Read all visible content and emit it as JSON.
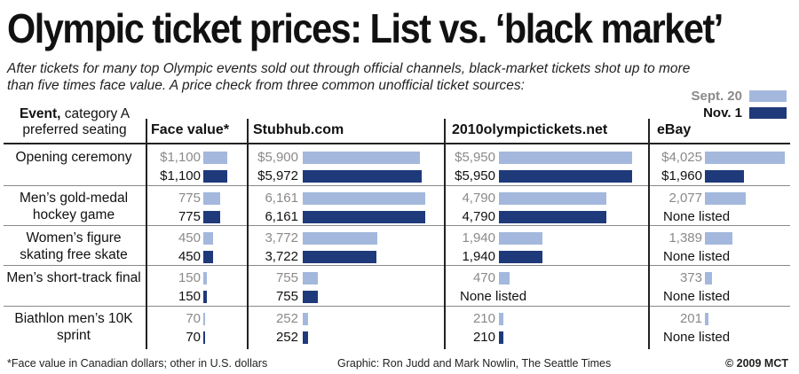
{
  "title": "Olympic ticket prices: List vs. ‘black market’",
  "subtitle": "After tickets for many top Olympic events sold out through official channels, black-market tickets shot up to more than five times face value. A price check from three common unofficial ticket sources:",
  "legend": [
    {
      "label": "Sept. 20",
      "color": "#a3b8dc"
    },
    {
      "label": "Nov. 1",
      "color": "#1f3a7a"
    }
  ],
  "event_header": {
    "bold": "Event,",
    "rest": " category A preferred seating"
  },
  "columns": [
    "Face value*",
    "Stubhub.com",
    "2010olympictickets.net",
    "eBay"
  ],
  "footer": {
    "note": "*Face value in Canadian dollars; other in U.S. dollars",
    "credit": "Graphic: Ron Judd and Mark Nowlin, The Seattle Times",
    "copyright": "© 2009 MCT"
  },
  "chart_data": {
    "type": "bar",
    "title": "Olympic ticket prices: List vs. ‘black market’",
    "series_names": [
      "Sept. 20",
      "Nov. 1"
    ],
    "events": [
      {
        "label": "Opening ceremony",
        "values": [
          {
            "sept": 1100,
            "nov": 1100,
            "sept_label": "$1,100",
            "nov_label": "$1,100"
          },
          {
            "sept": 5900,
            "nov": 5972,
            "sept_label": "$5,900",
            "nov_label": "$5,972"
          },
          {
            "sept": 5950,
            "nov": 5950,
            "sept_label": "$5,950",
            "nov_label": "$5,950"
          },
          {
            "sept": 4025,
            "nov": 1960,
            "sept_label": "$4,025",
            "nov_label": "$1,960"
          }
        ]
      },
      {
        "label": "Men’s gold-medal hockey game",
        "values": [
          {
            "sept": 775,
            "nov": 775,
            "sept_label": "775",
            "nov_label": "775"
          },
          {
            "sept": 6161,
            "nov": 6161,
            "sept_label": "6,161",
            "nov_label": "6,161"
          },
          {
            "sept": 4790,
            "nov": 4790,
            "sept_label": "4,790",
            "nov_label": "4,790"
          },
          {
            "sept": 2077,
            "nov": null,
            "sept_label": "2,077",
            "nov_label": "None listed"
          }
        ]
      },
      {
        "label": "Women’s figure skating free skate",
        "values": [
          {
            "sept": 450,
            "nov": 450,
            "sept_label": "450",
            "nov_label": "450"
          },
          {
            "sept": 3772,
            "nov": 3722,
            "sept_label": "3,772",
            "nov_label": "3,722"
          },
          {
            "sept": 1940,
            "nov": 1940,
            "sept_label": "1,940",
            "nov_label": "1,940"
          },
          {
            "sept": 1389,
            "nov": null,
            "sept_label": "1,389",
            "nov_label": "None listed"
          }
        ]
      },
      {
        "label": "Men’s short-track final",
        "values": [
          {
            "sept": 150,
            "nov": 150,
            "sept_label": "150",
            "nov_label": "150"
          },
          {
            "sept": 755,
            "nov": 755,
            "sept_label": "755",
            "nov_label": "755"
          },
          {
            "sept": 470,
            "nov": null,
            "sept_label": "470",
            "nov_label": "None listed"
          },
          {
            "sept": 373,
            "nov": null,
            "sept_label": "373",
            "nov_label": "None listed"
          }
        ]
      },
      {
        "label": "Biathlon men’s 10K sprint",
        "values": [
          {
            "sept": 70,
            "nov": 70,
            "sept_label": "70",
            "nov_label": "70"
          },
          {
            "sept": 252,
            "nov": 252,
            "sept_label": "252",
            "nov_label": "252"
          },
          {
            "sept": 210,
            "nov": 210,
            "sept_label": "210",
            "nov_label": "210"
          },
          {
            "sept": 201,
            "nov": null,
            "sept_label": "201",
            "nov_label": "None listed"
          }
        ]
      }
    ]
  }
}
